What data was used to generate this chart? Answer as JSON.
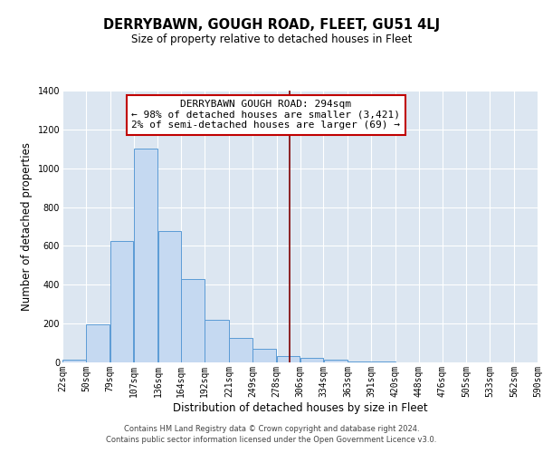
{
  "title": "DERRYBAWN, GOUGH ROAD, FLEET, GU51 4LJ",
  "subtitle": "Size of property relative to detached houses in Fleet",
  "xlabel": "Distribution of detached houses by size in Fleet",
  "ylabel": "Number of detached properties",
  "footer_lines": [
    "Contains HM Land Registry data © Crown copyright and database right 2024.",
    "Contains public sector information licensed under the Open Government Licence v3.0."
  ],
  "annotation_title": "DERRYBAWN GOUGH ROAD: 294sqm",
  "annotation_line1": "← 98% of detached houses are smaller (3,421)",
  "annotation_line2": "2% of semi-detached houses are larger (69) →",
  "bar_left_edges": [
    22,
    50,
    79,
    107,
    136,
    164,
    192,
    221,
    249,
    278,
    306,
    334,
    363,
    391,
    420,
    448,
    476,
    505,
    533,
    562
  ],
  "bar_widths": [
    28,
    29,
    28,
    29,
    28,
    28,
    29,
    28,
    29,
    28,
    28,
    29,
    28,
    29,
    28,
    28,
    29,
    28,
    29,
    28
  ],
  "bar_heights": [
    15,
    195,
    625,
    1100,
    675,
    430,
    220,
    125,
    70,
    35,
    25,
    15,
    5,
    3,
    2,
    1,
    0,
    0,
    0,
    0
  ],
  "bar_color": "#c5d9f1",
  "bar_edge_color": "#5b9bd5",
  "vline_x": 294,
  "vline_color": "#7f0000",
  "annotation_box_edge_color": "#c00000",
  "annotation_box_facecolor": "#ffffff",
  "xlim": [
    22,
    590
  ],
  "ylim": [
    0,
    1400
  ],
  "yticks": [
    0,
    200,
    400,
    600,
    800,
    1000,
    1200,
    1400
  ],
  "xtick_labels": [
    "22sqm",
    "50sqm",
    "79sqm",
    "107sqm",
    "136sqm",
    "164sqm",
    "192sqm",
    "221sqm",
    "249sqm",
    "278sqm",
    "306sqm",
    "334sqm",
    "363sqm",
    "391sqm",
    "420sqm",
    "448sqm",
    "476sqm",
    "505sqm",
    "533sqm",
    "562sqm",
    "590sqm"
  ],
  "xtick_positions": [
    22,
    50,
    79,
    107,
    136,
    164,
    192,
    221,
    249,
    278,
    306,
    334,
    363,
    391,
    420,
    448,
    476,
    505,
    533,
    562,
    590
  ],
  "bg_color": "#dce6f1",
  "fig_bg_color": "#ffffff",
  "grid_color": "#ffffff",
  "title_fontsize": 10.5,
  "subtitle_fontsize": 8.5,
  "axis_label_fontsize": 8.5,
  "tick_fontsize": 7,
  "annotation_fontsize": 8,
  "footer_fontsize": 6
}
